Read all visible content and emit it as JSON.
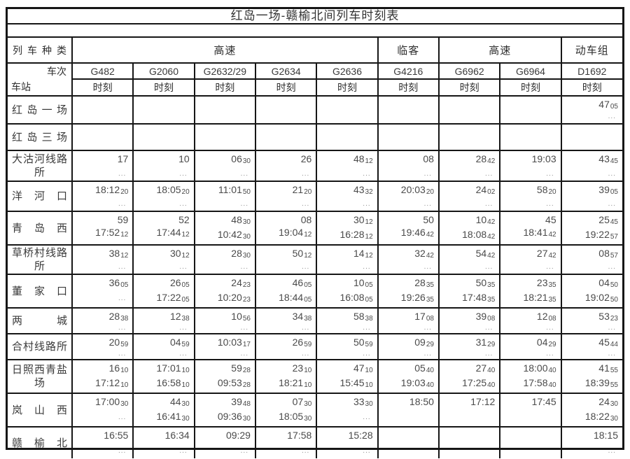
{
  "title": "红岛一场-赣榆北间列车时刻表",
  "colors": {
    "border": "#161616",
    "text": "#2e2e2e",
    "dots": "#8f8f8f",
    "background": "#ffffff"
  },
  "header": {
    "train_type_label": "列车种类",
    "train_no_label": "车次",
    "station_label": "车站",
    "time_label": "时刻",
    "type_groups": [
      {
        "label": "高速",
        "span": 5
      },
      {
        "label": "临客",
        "span": 1
      },
      {
        "label": "高速",
        "span": 2
      },
      {
        "label": "动车组",
        "span": 1
      }
    ],
    "train_numbers": [
      "G482",
      "G2060",
      "G2632/29",
      "G2634",
      "G2636",
      "G4216",
      "G6962",
      "G6964",
      "D1692"
    ]
  },
  "dots_mark": "...",
  "rows": [
    {
      "station": [
        "红岛一场"
      ],
      "cells": [
        [],
        [],
        [],
        [],
        [],
        [],
        [],
        [],
        [
          "47|05",
          "..."
        ]
      ]
    },
    {
      "station": [
        "红岛三场"
      ],
      "cells": [
        [],
        [],
        [],
        [],
        [],
        [],
        [],
        [],
        []
      ]
    },
    {
      "station": [
        "大沽河线路",
        "所"
      ],
      "cells": [
        [
          "17",
          "..."
        ],
        [
          "10",
          "..."
        ],
        [
          "06|30",
          "..."
        ],
        [
          "26",
          "..."
        ],
        [
          "48|12",
          "..."
        ],
        [
          "08",
          "..."
        ],
        [
          "28|42",
          "..."
        ],
        [
          "19:03",
          "..."
        ],
        [
          "43|45",
          "..."
        ]
      ]
    },
    {
      "station": [
        "洋河口"
      ],
      "cells": [
        [
          "18:12|20",
          "..."
        ],
        [
          "18:05|20",
          "..."
        ],
        [
          "11:01|50",
          "..."
        ],
        [
          "21|20",
          "..."
        ],
        [
          "43|32",
          "..."
        ],
        [
          "20:03|20",
          "..."
        ],
        [
          "24|02",
          "..."
        ],
        [
          "58|20",
          "..."
        ],
        [
          "39|05",
          "..."
        ]
      ]
    },
    {
      "station": [
        "青岛西"
      ],
      "cells": [
        [
          "59",
          "17:52|12"
        ],
        [
          "52",
          "17:44|12"
        ],
        [
          "48|30",
          "10:42|30"
        ],
        [
          "08",
          "19:04|12"
        ],
        [
          "30|12",
          "16:28|12"
        ],
        [
          "50",
          "19:46|42"
        ],
        [
          "10|42",
          "18:08|42"
        ],
        [
          "45",
          "18:41|42"
        ],
        [
          "25|45",
          "19:22|57"
        ]
      ]
    },
    {
      "station": [
        "草桥村线路",
        "所"
      ],
      "cells": [
        [
          "38|12",
          "..."
        ],
        [
          "30|12",
          "..."
        ],
        [
          "28|30",
          "..."
        ],
        [
          "50|12",
          "..."
        ],
        [
          "14|12",
          "..."
        ],
        [
          "32|42",
          "..."
        ],
        [
          "54|42",
          "..."
        ],
        [
          "27|42",
          "..."
        ],
        [
          "08|57",
          "..."
        ]
      ]
    },
    {
      "station": [
        "董家口"
      ],
      "cells": [
        [
          "36|05",
          "..."
        ],
        [
          "26|05",
          "17:22|05"
        ],
        [
          "24|23",
          "10:20|23"
        ],
        [
          "46|05",
          "18:44|05"
        ],
        [
          "10|05",
          "16:08|05"
        ],
        [
          "28|35",
          "19:26|35"
        ],
        [
          "50|35",
          "17:48|35"
        ],
        [
          "23|35",
          "18:21|35"
        ],
        [
          "04|50",
          "19:02|50"
        ]
      ]
    },
    {
      "station": [
        "两城"
      ],
      "cells": [
        [
          "28|38",
          "..."
        ],
        [
          "12|38",
          "..."
        ],
        [
          "10|56",
          "..."
        ],
        [
          "34|38",
          "..."
        ],
        [
          "58|38",
          "..."
        ],
        [
          "17|08",
          "..."
        ],
        [
          "39|08",
          "..."
        ],
        [
          "12|08",
          "..."
        ],
        [
          "53|23",
          "..."
        ]
      ]
    },
    {
      "station": [
        "合村线路所"
      ],
      "cells": [
        [
          "20|59",
          "..."
        ],
        [
          "04|59",
          "..."
        ],
        [
          "10:03|17",
          "..."
        ],
        [
          "26|59",
          "..."
        ],
        [
          "50|59",
          "..."
        ],
        [
          "09|29",
          "..."
        ],
        [
          "31|29",
          "..."
        ],
        [
          "04|29",
          "..."
        ],
        [
          "45|44",
          "..."
        ]
      ]
    },
    {
      "station": [
        "日照西青盐",
        "场"
      ],
      "cells": [
        [
          "16|10",
          "17:12|10"
        ],
        [
          "17:01|10",
          "16:58|10"
        ],
        [
          "59|28",
          "09:53|28"
        ],
        [
          "23|10",
          "18:21|10"
        ],
        [
          "47|10",
          "15:45|10"
        ],
        [
          "05|40",
          "19:03|40"
        ],
        [
          "27|40",
          "17:25|40"
        ],
        [
          "18:00|40",
          "17:58|40"
        ],
        [
          "41|55",
          "18:39|55"
        ]
      ]
    },
    {
      "station": [
        "岚山西"
      ],
      "cells": [
        [
          "17:00|30",
          "..."
        ],
        [
          "44|30",
          "16:41|30"
        ],
        [
          "39|48",
          "09:36|30"
        ],
        [
          "07|30",
          "18:05|30"
        ],
        [
          "33|30",
          "..."
        ],
        [
          "18:50"
        ],
        [
          "17:12"
        ],
        [
          "17:45"
        ],
        [
          "24|30",
          "18:22|30"
        ]
      ]
    },
    {
      "station": [
        "赣榆北"
      ],
      "cells": [
        [
          "16:55",
          "..."
        ],
        [
          "16:34",
          "..."
        ],
        [
          "09:29",
          "..."
        ],
        [
          "17:58",
          "..."
        ],
        [
          "15:28",
          "..."
        ],
        [],
        [],
        [],
        [
          "18:15",
          "..."
        ]
      ]
    }
  ]
}
